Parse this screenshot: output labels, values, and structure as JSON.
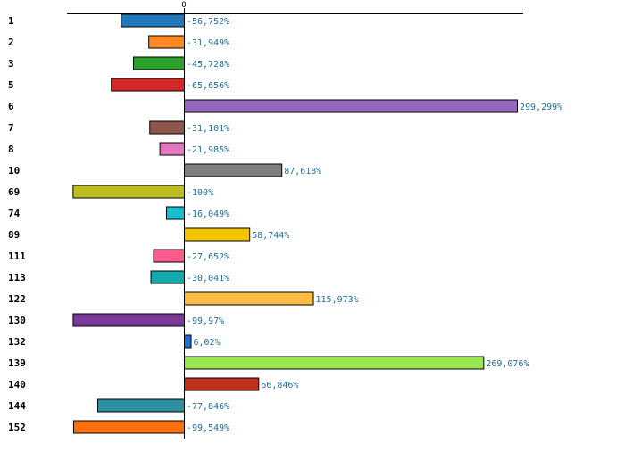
{
  "chart_data": {
    "type": "bar",
    "orientation": "horizontal",
    "title": "",
    "xlabel": "",
    "ylabel": "",
    "zero_tick_label": "0",
    "xlim": [
      -100,
      299.299
    ],
    "categories": [
      "1",
      "2",
      "3",
      "5",
      "6",
      "7",
      "8",
      "10",
      "69",
      "74",
      "89",
      "111",
      "113",
      "122",
      "130",
      "132",
      "139",
      "140",
      "144",
      "152"
    ],
    "values": [
      -56.752,
      -31.949,
      -45.728,
      -65.656,
      299.299,
      -31.101,
      -21.985,
      87.618,
      -100,
      -16.049,
      58.744,
      -27.652,
      -30.041,
      115.973,
      -99.97,
      6.02,
      269.076,
      66.846,
      -77.846,
      -99.549
    ],
    "value_labels": [
      "-56,752%",
      "-31,949%",
      "-45,728%",
      "-65,656%",
      "299,299%",
      "-31,101%",
      "-21,985%",
      "87,618%",
      "-100%",
      "-16,049%",
      "58,744%",
      "-27,652%",
      "-30,041%",
      "115,973%",
      "-99,97%",
      "6,02%",
      "269,076%",
      "66,846%",
      "-77,846%",
      "-99,549%"
    ],
    "colors": [
      "#2277bb",
      "#ff8822",
      "#2ca02c",
      "#d62728",
      "#9467bd",
      "#8c564b",
      "#e377c2",
      "#7f7f7f",
      "#bcbd22",
      "#17becf",
      "#f5c400",
      "#ff5a8c",
      "#12aaaa",
      "#ffbb44",
      "#7a3a9a",
      "#1a6fd6",
      "#99e650",
      "#c0301c",
      "#2e8fa0",
      "#ff7010"
    ],
    "grid": false,
    "legend": "none"
  }
}
